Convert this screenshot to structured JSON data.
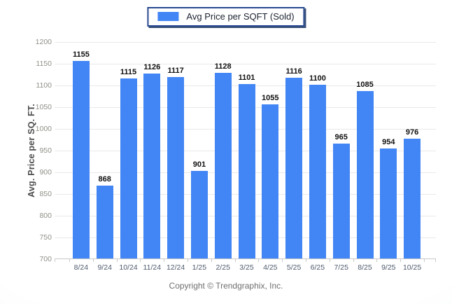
{
  "legend": {
    "label": "Avg Price per SQFT (Sold)"
  },
  "footer": {
    "copyright": "Copyright © Trendgraphix, Inc."
  },
  "colors": {
    "bar": "#4285f4",
    "legend_border": "#27498f",
    "grid": "#e9e9e9",
    "axis_line": "#c9c9c9",
    "y_tick_label": "#8f8f88",
    "x_tick_label": "#4f5b6e",
    "value_label": "#111111"
  },
  "chart_data": {
    "type": "bar",
    "title": "",
    "legend": "Avg Price per SQFT (Sold)",
    "legend_position": "top",
    "xlabel": "",
    "ylabel": "Avg. Price per SQ. FT.",
    "ylim": [
      700,
      1200
    ],
    "ytick_step": 50,
    "grid": true,
    "categories": [
      "8/24",
      "9/24",
      "10/24",
      "11/24",
      "12/24",
      "1/25",
      "2/25",
      "3/25",
      "4/25",
      "5/25",
      "6/25",
      "7/25",
      "8/25",
      "9/25",
      "10/25"
    ],
    "values": [
      1155,
      868,
      1115,
      1126,
      1117,
      901,
      1128,
      1101,
      1055,
      1116,
      1100,
      965,
      1085,
      954,
      976
    ]
  }
}
